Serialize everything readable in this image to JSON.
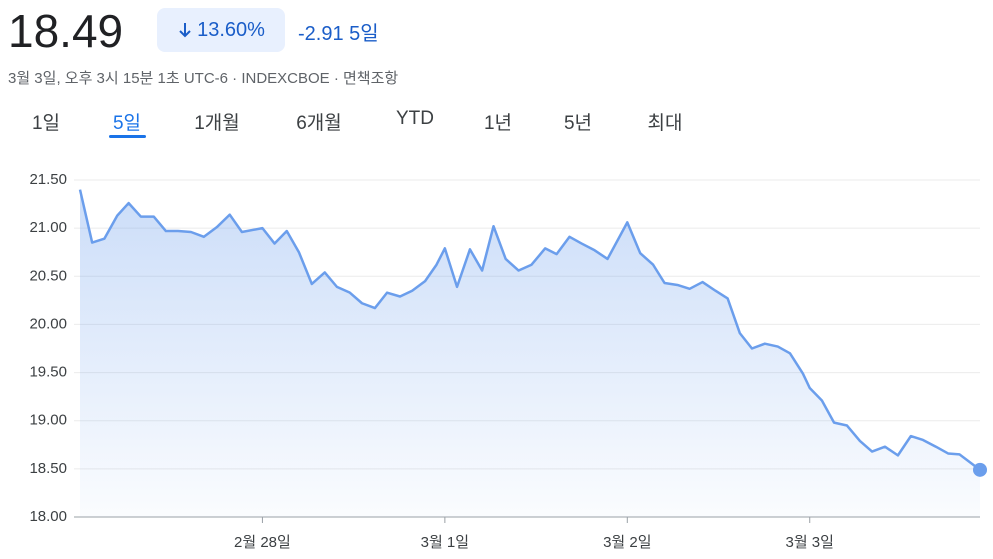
{
  "header": {
    "price": "18.49",
    "change_percent": "13.60%",
    "change": "-2.91",
    "period": "5일",
    "subtitle": "3월 3일, 오후 3시 15분 1초 UTC-6 · INDEXCBOE · 면책조항"
  },
  "tabs": [
    "1일",
    "5일",
    "1개월",
    "6개월",
    "YTD",
    "1년",
    "5년",
    "최대"
  ],
  "active_tab": 1,
  "chart_data": {
    "type": "line",
    "color": "#6b9eec",
    "grid": true,
    "x": [
      0,
      1.6,
      3.2,
      4.9,
      6.4,
      8.0,
      9.7,
      11.3,
      12.9,
      14.6,
      16.3,
      18.0,
      19.7,
      21.3,
      24,
      25.6,
      27.2,
      28.8,
      30.5,
      32.2,
      33.8,
      35.5,
      37.1,
      38.8,
      40.4,
      42.1,
      43.7,
      45.4,
      46.9,
      48,
      49.6,
      51.3,
      52.9,
      54.4,
      56.0,
      57.7,
      59.4,
      61.2,
      62.7,
      64.4,
      66.0,
      67.7,
      69.4,
      72,
      73.7,
      75.4,
      76.9,
      78.6,
      80.2,
      81.9,
      83.6,
      85.2,
      86.8,
      88.4,
      90.1,
      91.8,
      93.4,
      95.1,
      96,
      97.6,
      99.2,
      100.9,
      102.6,
      104.2,
      105.9,
      107.6,
      109.3,
      110.9,
      112.6,
      114.2,
      115.7,
      118.4
    ],
    "values": [
      21.4,
      20.85,
      20.89,
      21.13,
      21.26,
      21.12,
      21.12,
      20.97,
      20.97,
      20.96,
      20.91,
      21.01,
      21.14,
      20.96,
      21.0,
      20.84,
      20.97,
      20.75,
      20.42,
      20.54,
      20.39,
      20.33,
      20.22,
      20.17,
      20.33,
      20.29,
      20.35,
      20.45,
      20.62,
      20.79,
      20.39,
      20.78,
      20.56,
      21.02,
      20.68,
      20.56,
      20.62,
      20.79,
      20.73,
      20.91,
      20.84,
      20.77,
      20.68,
      21.06,
      20.74,
      20.62,
      20.43,
      20.41,
      20.37,
      20.44,
      20.35,
      20.27,
      19.91,
      19.75,
      19.8,
      19.77,
      19.7,
      19.49,
      19.34,
      19.21,
      18.98,
      18.95,
      18.79,
      18.68,
      18.73,
      18.64,
      18.84,
      18.8,
      18.73,
      18.66,
      18.65,
      18.49
    ],
    "xlim": [
      0,
      118.4
    ],
    "xticks": [
      {
        "value": 24,
        "label": "2월 28일"
      },
      {
        "value": 48,
        "label": "3월 1일"
      },
      {
        "value": 72,
        "label": "3월 2일"
      },
      {
        "value": 96,
        "label": "3월 3일"
      }
    ],
    "ylim": [
      18,
      21.5
    ],
    "yticks": [
      {
        "value": 18,
        "label": "18.00"
      },
      {
        "value": 18.5,
        "label": "18.50"
      },
      {
        "value": 19,
        "label": "19.00"
      },
      {
        "value": 19.5,
        "label": "19.50"
      },
      {
        "value": 20,
        "label": "20.00"
      },
      {
        "value": 20.5,
        "label": "20.50"
      },
      {
        "value": 21,
        "label": "21.00"
      },
      {
        "value": 21.5,
        "label": "21.50"
      }
    ]
  }
}
